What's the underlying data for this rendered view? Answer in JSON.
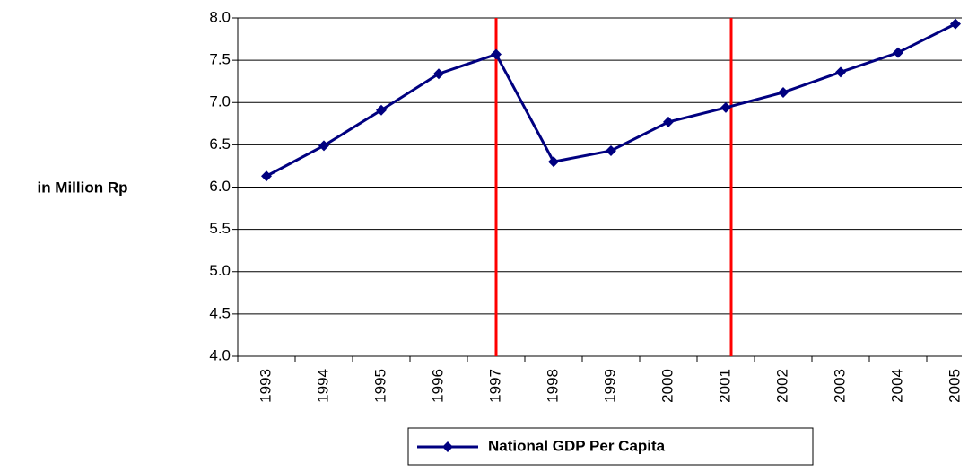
{
  "chart_data": {
    "type": "line",
    "y_label": "in Million Rp",
    "categories": [
      "1993",
      "1994",
      "1995",
      "1996",
      "1997",
      "1998",
      "1999",
      "2000",
      "2001",
      "2002",
      "2003",
      "2004",
      "2005"
    ],
    "series": [
      {
        "name": "National GDP Per Capita",
        "color": "#000080",
        "values": [
          6.13,
          6.49,
          6.91,
          7.34,
          7.57,
          6.3,
          6.43,
          6.77,
          6.94,
          7.12,
          7.36,
          7.59,
          7.93
        ]
      }
    ],
    "ylim": [
      4.0,
      8.0
    ],
    "yticks": [
      {
        "value": 4,
        "label": "4.0"
      },
      {
        "value": 4.5,
        "label": "4.5"
      },
      {
        "value": 5,
        "label": "5.0"
      },
      {
        "value": 5.5,
        "label": "5.5"
      },
      {
        "value": 6,
        "label": "6.0"
      },
      {
        "value": 6.5,
        "label": "6.5"
      },
      {
        "value": 7,
        "label": "7.0"
      },
      {
        "value": 7.5,
        "label": "7.5"
      },
      {
        "value": 8,
        "label": "8.0"
      }
    ],
    "grid": true,
    "marker_lines": {
      "categories": [
        "1997",
        "2001"
      ],
      "color": "#ff0000"
    },
    "legend": "bottom"
  }
}
